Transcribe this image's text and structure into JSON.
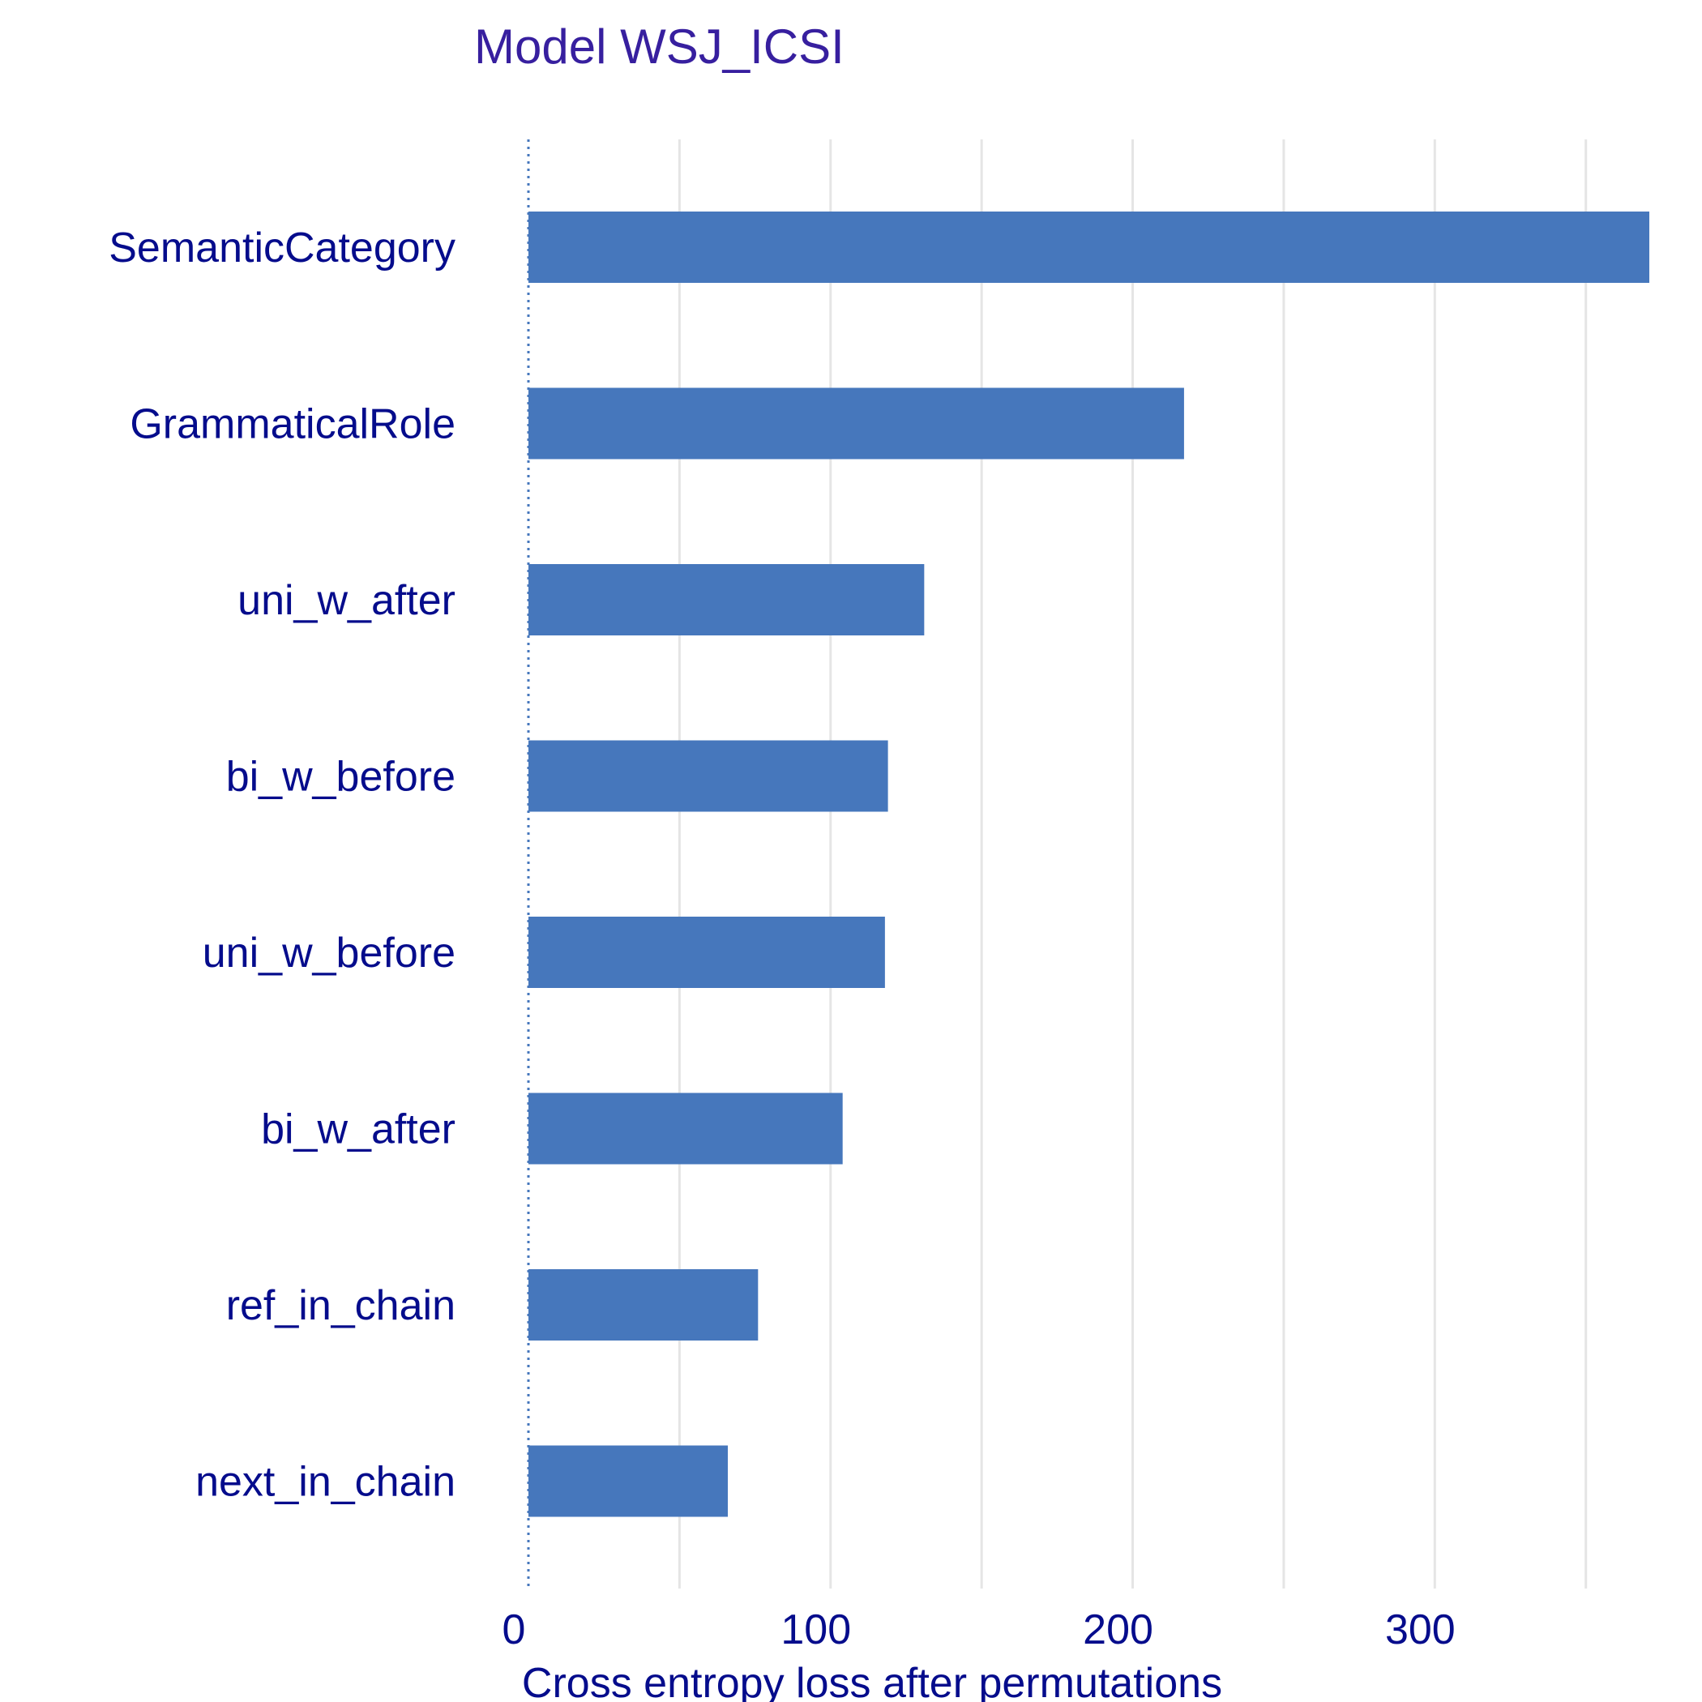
{
  "chart_data": {
    "type": "bar",
    "orientation": "horizontal",
    "title": "Model WSJ_ICSI",
    "subtitle": "",
    "xlabel": "Cross entropy loss after permutations",
    "ylabel": "",
    "categories": [
      "SemanticCategory",
      "GrammaticalRole",
      "uni_w_after",
      "bi_w_before",
      "uni_w_before",
      "bi_w_after",
      "ref_in_chain",
      "next_in_chain"
    ],
    "series": [
      {
        "values": [
          371,
          217,
          131,
          119,
          118,
          104,
          76,
          66
        ]
      }
    ],
    "baseline": 0,
    "xlim": [
      0,
      371
    ],
    "xticks": [
      0,
      100,
      200,
      300
    ],
    "xtick_labels": [
      "0",
      "100",
      "200",
      "300"
    ],
    "grid": true,
    "legend": "none",
    "colors": {
      "bar": "#4677BC",
      "text": "#050C8C",
      "title": "#371F9F",
      "grid": "#E5E5E5",
      "baseline": "#4677BC"
    }
  }
}
